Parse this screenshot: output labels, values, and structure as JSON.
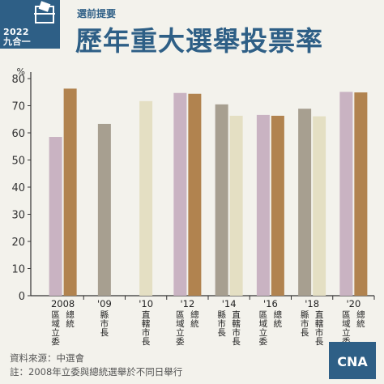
{
  "header": {
    "logo_year": "2022",
    "logo_sub": "九合一",
    "kicker": "選前提要",
    "title": "歷年重大選舉投票率"
  },
  "footer": {
    "source": "資料來源：中選會",
    "note": "註：2008年立委與總統選舉於不同日舉行",
    "logo_label": "CNA"
  },
  "colors": {
    "brand": "#2e5f86",
    "legislative": "#c9b3c2",
    "presidential": "#b1834f",
    "mayor_municipal": "#a79f90",
    "mayor_local": "#e4dfc3"
  },
  "chart_data": {
    "type": "bar",
    "ylim": [
      0,
      80
    ],
    "yticks": [
      0,
      10,
      20,
      30,
      40,
      50,
      60,
      70,
      80
    ],
    "yunit": "%",
    "grid": false,
    "groups": [
      {
        "year": "2008",
        "bars": [
          {
            "label": "區域立委",
            "value": 58.5,
            "color": "#c9b3c2"
          },
          {
            "label": "總統",
            "value": 76.3,
            "color": "#b1834f"
          }
        ]
      },
      {
        "year": "'09",
        "bars": [
          {
            "label": "縣市長",
            "value": 63.3,
            "color": "#a79f90"
          }
        ]
      },
      {
        "year": "'10",
        "bars": [
          {
            "label": "直轄市長",
            "value": 71.7,
            "color": "#e4dfc3"
          }
        ]
      },
      {
        "year": "'12",
        "bars": [
          {
            "label": "區域立委",
            "value": 74.7,
            "color": "#c9b3c2"
          },
          {
            "label": "總統",
            "value": 74.4,
            "color": "#b1834f"
          }
        ]
      },
      {
        "year": "'14",
        "bars": [
          {
            "label": "縣市長",
            "value": 70.5,
            "color": "#a79f90"
          },
          {
            "label": "直轄市長",
            "value": 66.3,
            "color": "#e4dfc3"
          }
        ]
      },
      {
        "year": "'16",
        "bars": [
          {
            "label": "區域立委",
            "value": 66.6,
            "color": "#c9b3c2"
          },
          {
            "label": "總統",
            "value": 66.3,
            "color": "#b1834f"
          }
        ]
      },
      {
        "year": "'18",
        "bars": [
          {
            "label": "縣市長",
            "value": 68.9,
            "color": "#a79f90"
          },
          {
            "label": "直轄市長",
            "value": 66.1,
            "color": "#e4dfc3"
          }
        ]
      },
      {
        "year": "'20",
        "bars": [
          {
            "label": "區域立委",
            "value": 75.1,
            "color": "#c9b3c2"
          },
          {
            "label": "總統",
            "value": 74.9,
            "color": "#b1834f"
          }
        ]
      }
    ]
  }
}
